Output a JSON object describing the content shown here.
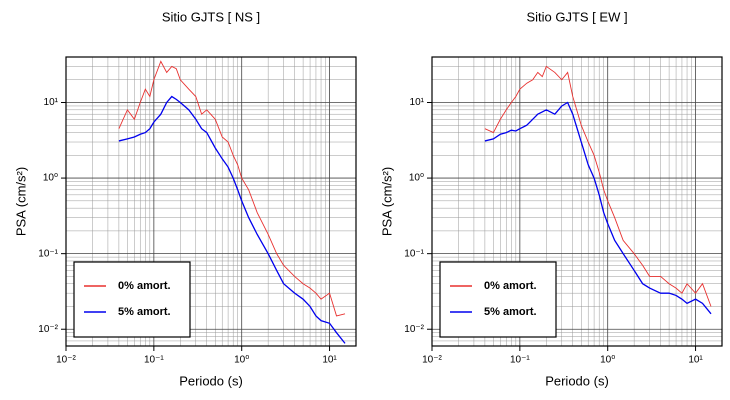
{
  "chart_data": [
    {
      "type": "line",
      "title": "Sitio GJTS [ NS ]",
      "xlabel": "Periodo (s)",
      "ylabel": "PSA (cm/s²)",
      "x": [
        0.04,
        0.05,
        0.06,
        0.07,
        0.08,
        0.09,
        0.1,
        0.12,
        0.14,
        0.16,
        0.18,
        0.2,
        0.25,
        0.3,
        0.35,
        0.4,
        0.5,
        0.6,
        0.7,
        0.8,
        0.9,
        1,
        1.2,
        1.5,
        2,
        2.5,
        3,
        4,
        5,
        6,
        7,
        8,
        10,
        12,
        15
      ],
      "series": [
        {
          "name": "0% amort.",
          "color": "#e8312f",
          "values": [
            4.5,
            8,
            6,
            10,
            15,
            12,
            20,
            35,
            25,
            30,
            28,
            20,
            15,
            12,
            7,
            8,
            6,
            3.5,
            3,
            2,
            1.5,
            1,
            0.7,
            0.35,
            0.18,
            0.1,
            0.07,
            0.05,
            0.04,
            0.035,
            0.03,
            0.025,
            0.03,
            0.015,
            0.016
          ]
        },
        {
          "name": "5% amort.",
          "color": "#0000ee",
          "values": [
            3.1,
            3.3,
            3.5,
            3.8,
            4,
            4.5,
            5.5,
            7,
            10,
            12,
            11,
            10,
            8,
            6,
            4.5,
            4,
            2.5,
            1.8,
            1.4,
            1,
            0.7,
            0.5,
            0.3,
            0.18,
            0.1,
            0.06,
            0.04,
            0.03,
            0.025,
            0.02,
            0.015,
            0.013,
            0.012,
            0.009,
            0.0065
          ]
        }
      ],
      "xlim": [
        0.01,
        20
      ],
      "ylim": [
        0.006,
        40
      ],
      "xscale": "log",
      "yscale": "log",
      "xticks": [
        {
          "value": 0.01,
          "label": "10⁻²"
        },
        {
          "value": 0.1,
          "label": "10⁻¹"
        },
        {
          "value": 1,
          "label": "10⁰"
        },
        {
          "value": 10,
          "label": "10¹"
        }
      ],
      "yticks": [
        {
          "value": 0.01,
          "label": "10⁻²"
        },
        {
          "value": 0.1,
          "label": "10⁻¹"
        },
        {
          "value": 1,
          "label": "10⁰"
        },
        {
          "value": 10,
          "label": "10¹"
        }
      ],
      "grid": true,
      "minor_grid": true,
      "legend": "lower left"
    },
    {
      "type": "line",
      "title": "Sitio GJTS [ EW ]",
      "xlabel": "Periodo (s)",
      "ylabel": "PSA (cm/s²)",
      "x": [
        0.04,
        0.05,
        0.06,
        0.07,
        0.08,
        0.09,
        0.1,
        0.12,
        0.14,
        0.16,
        0.18,
        0.2,
        0.25,
        0.3,
        0.35,
        0.4,
        0.5,
        0.6,
        0.7,
        0.8,
        0.9,
        1,
        1.2,
        1.5,
        2,
        2.5,
        3,
        4,
        5,
        6,
        7,
        8,
        10,
        12,
        15
      ],
      "series": [
        {
          "name": "0% amort.",
          "color": "#e8312f",
          "values": [
            4.5,
            4,
            6,
            8,
            10,
            12,
            15,
            18,
            20,
            25,
            22,
            30,
            25,
            20,
            25,
            12,
            5,
            3,
            2,
            1.2,
            0.7,
            0.5,
            0.3,
            0.15,
            0.1,
            0.07,
            0.05,
            0.05,
            0.04,
            0.035,
            0.03,
            0.04,
            0.03,
            0.04,
            0.02
          ]
        },
        {
          "name": "5% amort.",
          "color": "#0000ee",
          "values": [
            3.1,
            3.3,
            3.8,
            4,
            4.3,
            4.2,
            4.5,
            5,
            6,
            7,
            7.5,
            8,
            7,
            9,
            10,
            7,
            3,
            1.5,
            1,
            0.6,
            0.35,
            0.25,
            0.15,
            0.1,
            0.06,
            0.04,
            0.035,
            0.03,
            0.03,
            0.028,
            0.025,
            0.022,
            0.025,
            0.022,
            0.016
          ]
        }
      ],
      "xlim": [
        0.01,
        20
      ],
      "ylim": [
        0.006,
        40
      ],
      "xscale": "log",
      "yscale": "log",
      "xticks": [
        {
          "value": 0.01,
          "label": "10⁻²"
        },
        {
          "value": 0.1,
          "label": "10⁻¹"
        },
        {
          "value": 1,
          "label": "10⁰"
        },
        {
          "value": 10,
          "label": "10¹"
        }
      ],
      "yticks": [
        {
          "value": 0.01,
          "label": "10⁻²"
        },
        {
          "value": 0.1,
          "label": "10⁻¹"
        },
        {
          "value": 1,
          "label": "10⁰"
        },
        {
          "value": 10,
          "label": "10¹"
        }
      ],
      "grid": true,
      "minor_grid": true,
      "legend": "lower left"
    }
  ]
}
